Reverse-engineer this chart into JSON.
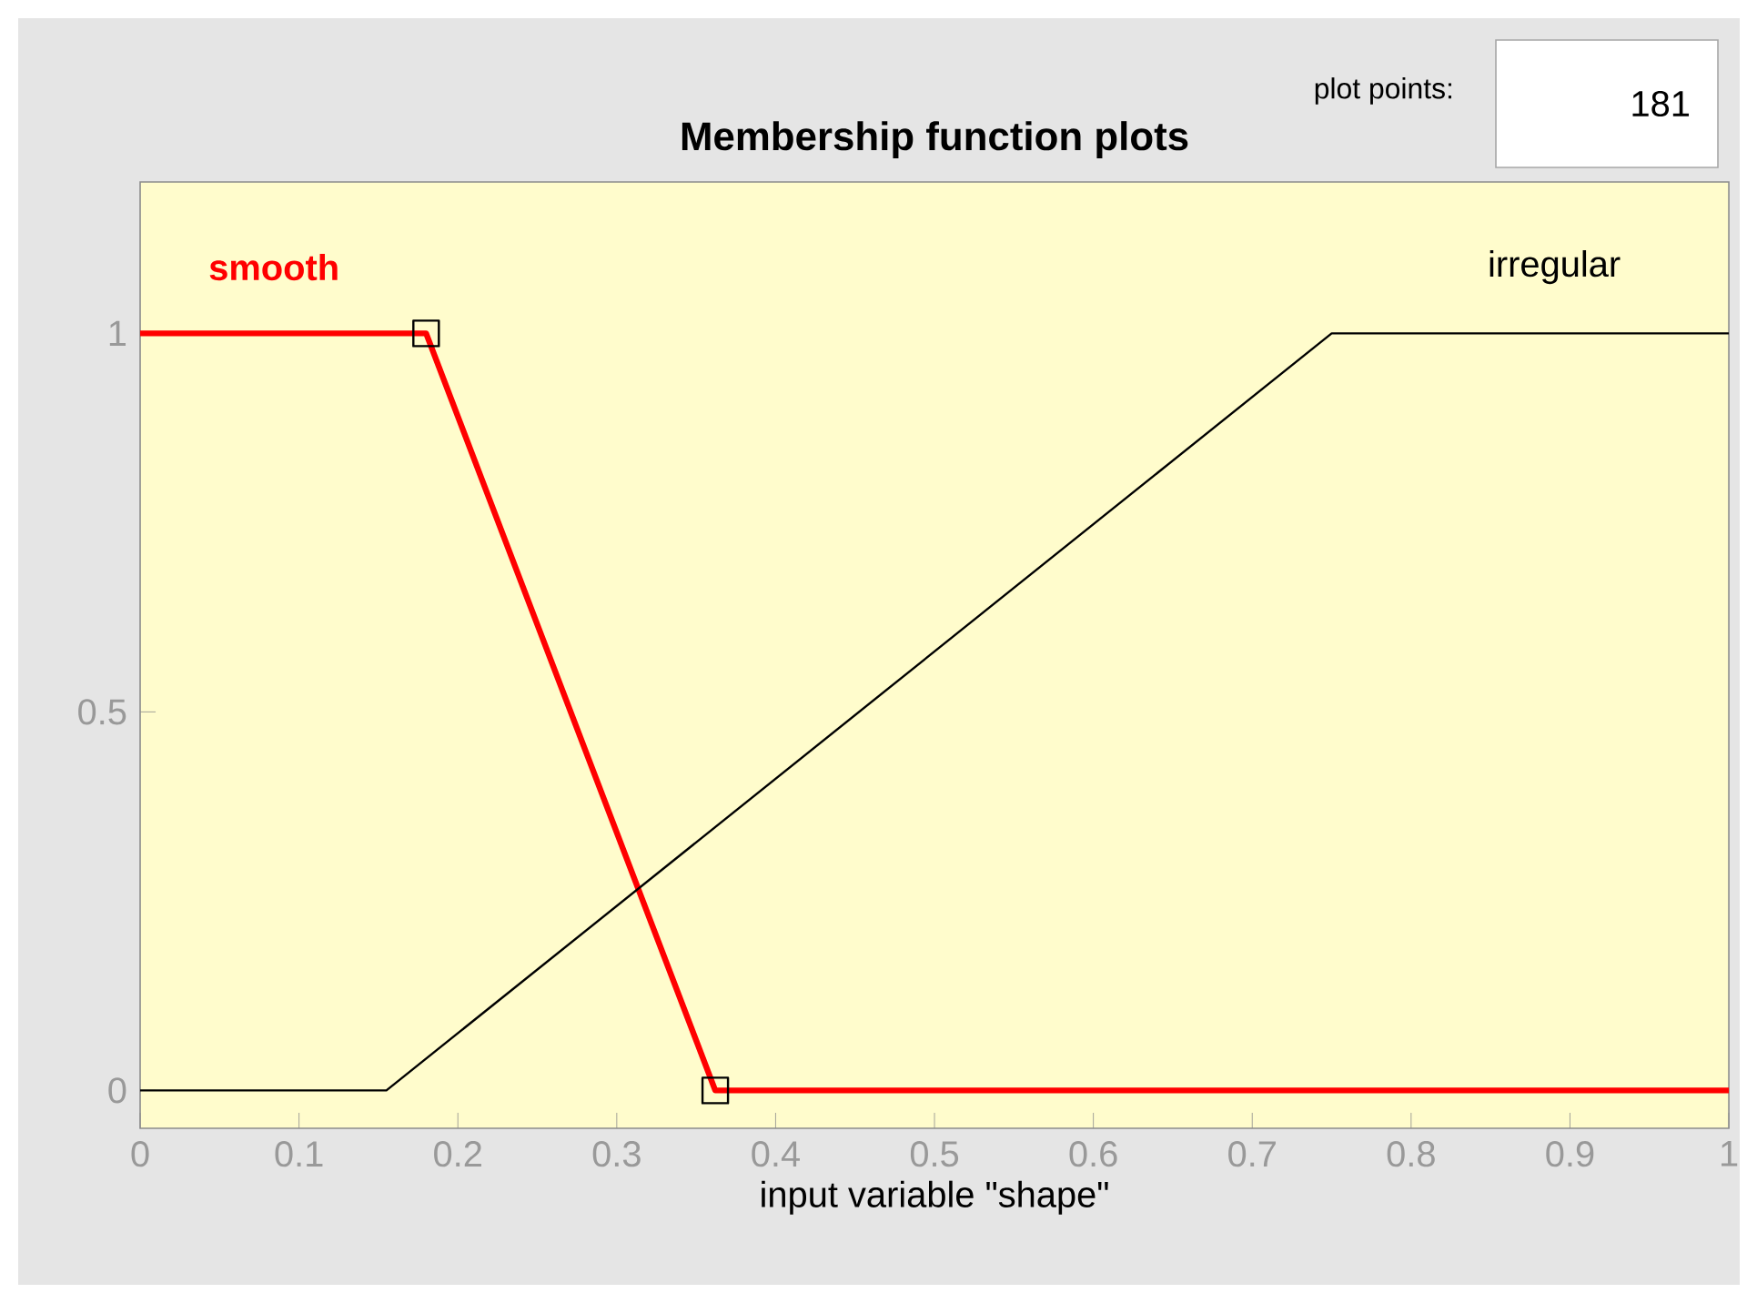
{
  "chart_data": {
    "type": "line",
    "title": "Membership function plots",
    "xlabel": "input variable \"shape\"",
    "series": [
      {
        "name": "smooth",
        "color": "#ff0000",
        "x": [
          0,
          0.18,
          0.362,
          1
        ],
        "values": [
          1,
          1,
          0,
          0
        ],
        "marker": "square"
      },
      {
        "name": "irregular",
        "color": "#000000",
        "x": [
          0,
          0.155,
          0.75,
          1
        ],
        "values": [
          0,
          0,
          1,
          1
        ]
      }
    ],
    "xlim": [
      0,
      1
    ],
    "ylim": [
      -0.05,
      1.2
    ],
    "xticks": [
      0,
      0.1,
      0.2,
      0.3,
      0.4,
      0.5,
      0.6,
      0.7,
      0.8,
      0.9,
      1
    ],
    "yticks": [
      0,
      0.5,
      1
    ],
    "grid": false,
    "line_style": "solid",
    "annotations": [
      "plot points:",
      "181"
    ]
  }
}
